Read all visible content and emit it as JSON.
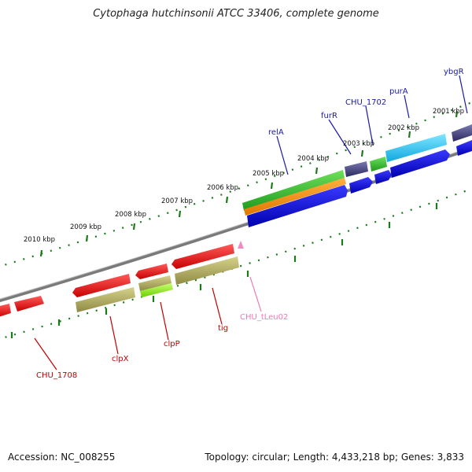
{
  "title": "Cytophaga hutchinsonii ATCC 33406, complete genome",
  "footer": {
    "accession": "Accession: NC_008255",
    "summary": "Topology: circular; Length: 4,433,218 bp; Genes: 3,833"
  },
  "colors": {
    "backbone": "#8a8a8a",
    "tick": "#1a7a1a",
    "forward_label": "#1a1aa0",
    "reverse_label": "#c00000",
    "trna_label": "#e87ab8"
  },
  "scale_labels": [
    {
      "text": "2010 kbp",
      "kbp": 2010
    },
    {
      "text": "2009 kbp",
      "kbp": 2009
    },
    {
      "text": "2008 kbp",
      "kbp": 2008
    },
    {
      "text": "2007 kbp",
      "kbp": 2007
    },
    {
      "text": "2006 kbp",
      "kbp": 2006
    },
    {
      "text": "2005 kbp",
      "kbp": 2005
    },
    {
      "text": "2004 kbp",
      "kbp": 2004
    },
    {
      "text": "2003 kbp",
      "kbp": 2003
    },
    {
      "text": "2002 kbp",
      "kbp": 2002
    },
    {
      "text": "2001 kbp",
      "kbp": 2001
    }
  ],
  "gene_labels": [
    {
      "text": "ybgR",
      "strand": "forward"
    },
    {
      "text": "purA",
      "strand": "forward"
    },
    {
      "text": "CHU_1702",
      "strand": "forward"
    },
    {
      "text": "furR",
      "strand": "forward"
    },
    {
      "text": "relA",
      "strand": "forward"
    },
    {
      "text": "CHU_tLeu02",
      "strand": "trna"
    },
    {
      "text": "tig",
      "strand": "reverse"
    },
    {
      "text": "clpP",
      "strand": "reverse"
    },
    {
      "text": "clpX",
      "strand": "reverse"
    },
    {
      "text": "CHU_1708",
      "strand": "reverse"
    }
  ]
}
